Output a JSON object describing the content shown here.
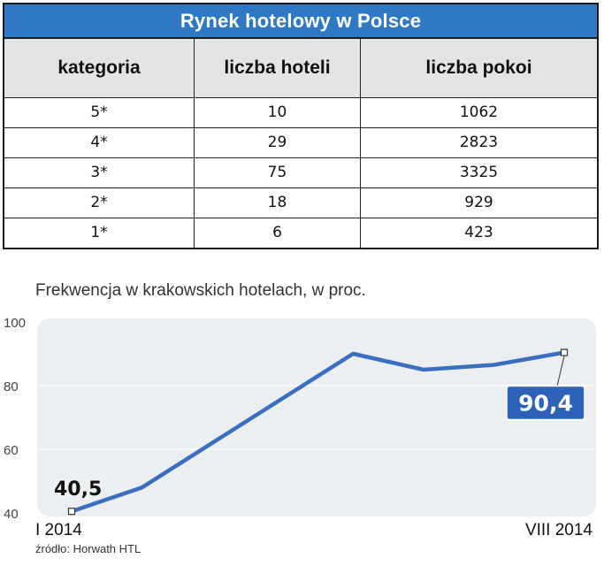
{
  "table": {
    "title": "Rynek hotelowy w Polsce",
    "headers": [
      "kategoria",
      "liczba hoteli",
      "liczba pokoi"
    ],
    "rows": [
      [
        "5*",
        "10",
        "1062"
      ],
      [
        "4*",
        "29",
        "2823"
      ],
      [
        "3*",
        "75",
        "3325"
      ],
      [
        "2*",
        "18",
        "929"
      ],
      [
        "1*",
        "6",
        "423"
      ]
    ],
    "colors": {
      "title_bg": "#2f78c4",
      "header_bg": "#e3e4e6"
    }
  },
  "chart": {
    "title": "Frekwencja w krakowskich hotelach, w proc.",
    "source": "źródło: Horwath HTL"
  },
  "chart_data": {
    "type": "line",
    "x": [
      0,
      1,
      2,
      3,
      4,
      5,
      6,
      7
    ],
    "x_tick_labels": [
      "I 2014",
      "",
      "",
      "",
      "",
      "",
      "",
      "VIII 2014"
    ],
    "values": [
      40.5,
      48,
      62,
      76,
      90,
      85,
      86.5,
      90.4
    ],
    "ylim": [
      40,
      100
    ],
    "yticks": [
      40,
      60,
      80,
      100
    ],
    "grid": true,
    "start_label": "40,5",
    "end_label": "90,4",
    "line_color": "#3a6fbf",
    "label_bg_color": "#2c63b8"
  }
}
